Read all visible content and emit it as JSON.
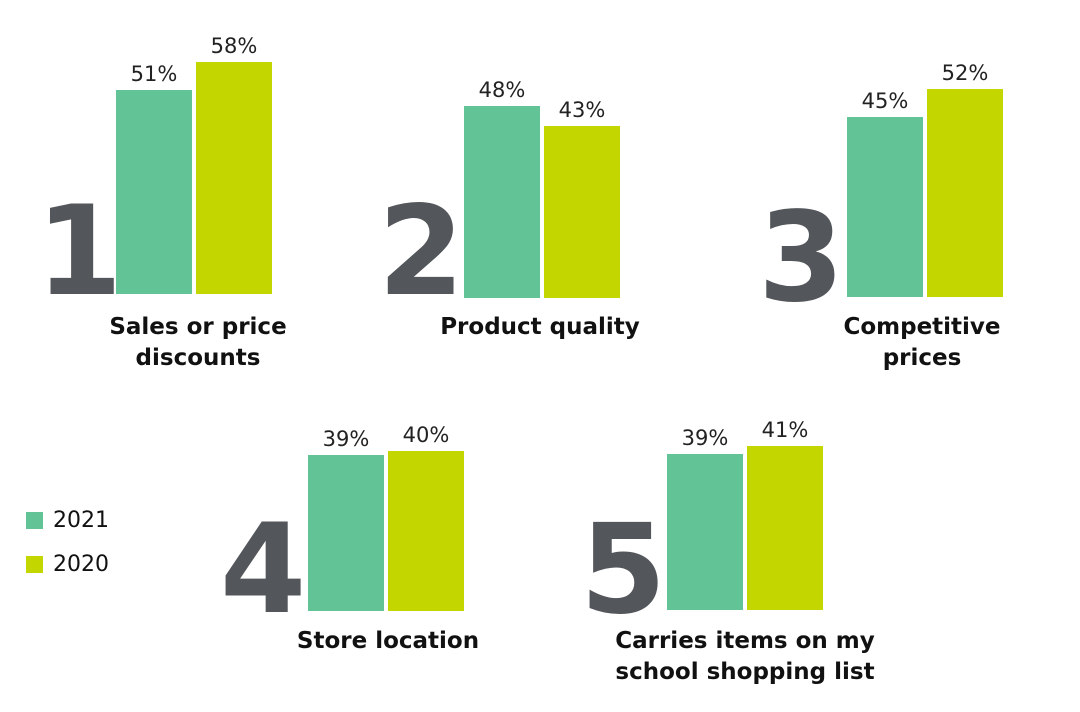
{
  "chart_data": {
    "type": "bar",
    "categories": [
      {
        "rank": "1",
        "label_lines": [
          "Sales or price",
          "discounts"
        ],
        "values": [
          51,
          58
        ],
        "value_labels": [
          "51%",
          "58%"
        ]
      },
      {
        "rank": "2",
        "label_lines": [
          "Product quality"
        ],
        "values": [
          48,
          43
        ],
        "value_labels": [
          "48%",
          "43%"
        ]
      },
      {
        "rank": "3",
        "label_lines": [
          "Competitive",
          "prices"
        ],
        "values": [
          45,
          52
        ],
        "value_labels": [
          "45%",
          "52%"
        ]
      },
      {
        "rank": "4",
        "label_lines": [
          "Store location"
        ],
        "values": [
          39,
          40
        ],
        "value_labels": [
          "39%",
          "40%"
        ]
      },
      {
        "rank": "5",
        "label_lines": [
          "Carries items on my",
          "school shopping list"
        ],
        "values": [
          39,
          41
        ],
        "value_labels": [
          "39%",
          "41%"
        ]
      }
    ],
    "series": [
      {
        "name": "2021",
        "color": "#62c396"
      },
      {
        "name": "2020",
        "color": "#c4d600"
      }
    ],
    "unit": "%",
    "grid": false,
    "legend_position": "left-bottom"
  }
}
